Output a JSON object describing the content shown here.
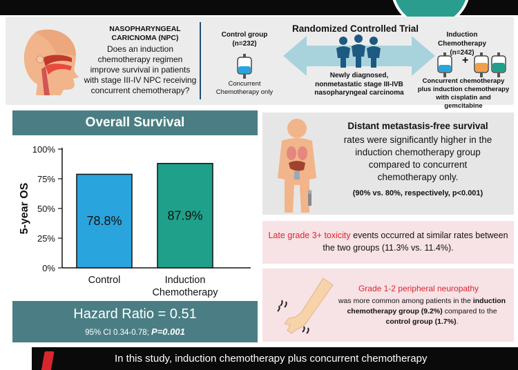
{
  "header": {
    "npc_title": "NASOPHARYNGEAL CARICNOMA (NPC)",
    "question": "Does an induction chemotherapy regimen improve survival in patients with stage III-IV NPC receiving concurrent chemotherapy?",
    "rct_title": "Randomized Controlled Trial",
    "control_title": "Control group",
    "control_n": "(n=232)",
    "control_desc": "Concurrent Chemotherapy only",
    "induction_title": "Induction Chemotherapy",
    "induction_n": "(n=242)",
    "plus": "+",
    "induction_desc": "Concurrent chemotherapy plus induction chemotherapy with cisplatin and gemcitabine",
    "population": "Newly diagnosed, nonmetastatic stage III-IVB nasopharyngeal carcinoma"
  },
  "survival": {
    "title": "Overall Survival",
    "hazard_ratio": "Hazard Ratio = 0.51",
    "ci": "95% CI 0.34-0.78; ",
    "p": "P=0.001"
  },
  "chart_data": {
    "type": "bar",
    "ylabel": "5-year OS",
    "ylim": [
      0,
      100
    ],
    "yticks": [
      "0%",
      "25%",
      "50%",
      "75%",
      "100%"
    ],
    "categories": [
      "Control",
      "Induction Chemotherapy"
    ],
    "values": [
      78.8,
      87.9
    ],
    "data_labels": [
      "78.8%",
      "87.9%"
    ],
    "colors": [
      "#2aa4dc",
      "#1fa08a"
    ]
  },
  "dmfs": {
    "title": "Distant metastasis-free survival",
    "body": "rates were significantly higher in the induction chemotherapy group compared to concurrent chemotherapy only.",
    "stat": "(90% vs. 80%, respectively, p<0.001)"
  },
  "toxicity": {
    "highlight": "Late grade 3+ toxicity",
    "rest": " events occurred at similar rates between the two groups (11.3% vs. 11.4%)."
  },
  "neuropathy": {
    "title": "Grade 1-2 peripheral neuropathy",
    "line1": "was more common among patients in the ",
    "group1": "induction chemotherapy group (9.2%)",
    "line2": " compared to the ",
    "group2": "control group (1.7%)",
    "end": "."
  },
  "conclusion": {
    "text": "In this study, induction chemotherapy plus concurrent chemotherapy"
  },
  "colors": {
    "teal": "#4a7e84",
    "accent_red": "#d8262e",
    "control_blue": "#2aa4dc",
    "induction_green": "#1fa08a"
  }
}
